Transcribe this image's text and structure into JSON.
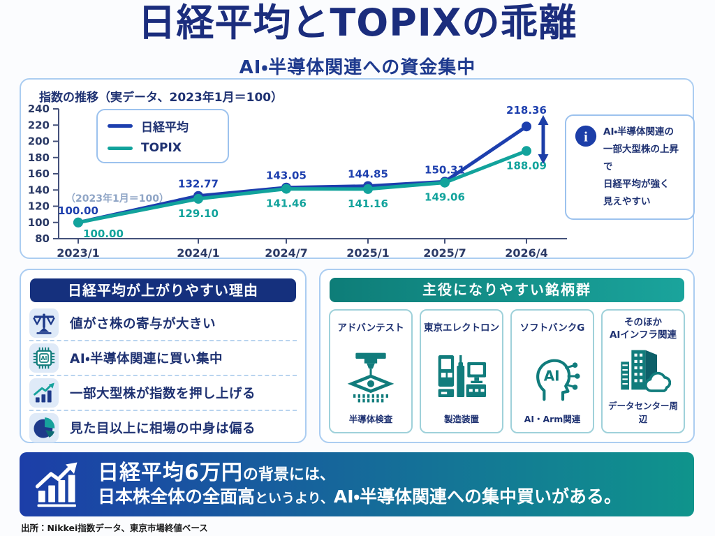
{
  "page": {
    "title": "日経平均とTOPIXの乖離",
    "subtitle": "AI・半導体関連への資金集中"
  },
  "chart_panel": {
    "title": "指数の推移（実データ、2023年1月＝100）",
    "baseline_note": "（2023年1月＝100）",
    "info_icon": "info-icon",
    "info_text": "AI・半導体関連の\n一部大型株の上昇で\n日経平均が強く\n見えやすい"
  },
  "chart_data": {
    "type": "line",
    "x": [
      "2023/1",
      "2024/1",
      "2024/7",
      "2025/1",
      "2025/7",
      "2026/4"
    ],
    "series": [
      {
        "name": "日経平均",
        "color": "#1d3fae",
        "values": [
          100.0,
          132.77,
          143.05,
          144.85,
          150.31,
          218.36
        ]
      },
      {
        "name": "TOPIX",
        "color": "#12a39c",
        "values": [
          100.0,
          129.1,
          141.46,
          141.16,
          149.06,
          188.09
        ]
      }
    ],
    "ylim": [
      80,
      240
    ],
    "ytick_step": 20,
    "grid": false,
    "legend_position": "top-left",
    "annotations": [
      "divergence-arrow between 218.36 and 188.09"
    ]
  },
  "reasons_panel": {
    "header": "日経平均が上がりやすい理由",
    "items": [
      {
        "icon": "balance-scale-icon",
        "label": "値がさ株の寄与が大きい"
      },
      {
        "icon": "ai-chip-icon",
        "label": "AI・半導体関連に買い集中"
      },
      {
        "icon": "rising-bar-chart-icon",
        "label": "一部大型株が指数を押し上げる"
      },
      {
        "icon": "pie-chart-icon",
        "label": "見た目以上に相場の中身は偏る"
      }
    ]
  },
  "stocks_panel": {
    "header": "主役になりやすい銘柄群",
    "cards": [
      {
        "name": "アドバンテスト",
        "icon": "semiconductor-tester-icon",
        "caption": "半導体検査"
      },
      {
        "name": "東京エレクトロン",
        "icon": "manufacturing-equipment-icon",
        "caption": "製造装置"
      },
      {
        "name": "ソフトバンクG",
        "icon": "ai-head-icon",
        "caption": "AI・Arm関連"
      },
      {
        "name": "そのほか\nAIインフラ関連",
        "icon": "data-center-icon",
        "caption": "データセンター周辺"
      }
    ]
  },
  "banner": {
    "icon": "growth-chart-icon",
    "line1_strong": "日経平均6万円",
    "line1_rest": "の背景には、",
    "line2_strong1": "日本株全体の全面高",
    "line2_mid": "というより、",
    "line2_strong2": "AI・半導体関連への集中買いがある。"
  },
  "footer": {
    "source": "出所：Nikkei指数データ、東京市場終値ベース"
  },
  "colors": {
    "heading_navy": "#1b2d7d",
    "navy_text": "#1f3272",
    "nikkei": "#1d3fae",
    "topix": "#12a39c",
    "panel_border": "#abcdf1",
    "card_border": "#9fd1da",
    "tile_bg": "#dfeaf8",
    "reasons_header_bg": "#15307d",
    "stocks_header_from": "#0e7d78",
    "stocks_header_to": "#1aa49c",
    "banner_from": "#1c3ea8",
    "banner_to": "#0f948c",
    "icon_teal": "#117c7c",
    "note_gray": "#8fa5c6"
  }
}
